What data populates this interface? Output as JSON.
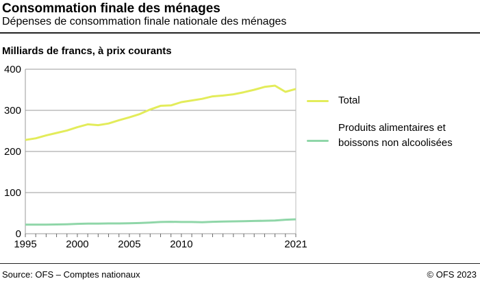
{
  "header": {
    "title": "Consommation finale des ménages",
    "subtitle": "Dépenses de consommation finale nationale des ménages"
  },
  "footer": {
    "source": "Source: OFS – Comptes nationaux",
    "copyright": "© OFS 2023"
  },
  "chart_data": {
    "type": "line",
    "title": "Consommation finale des ménages",
    "subtitle": "Dépenses de consommation finale nationale des ménages",
    "ylabel": "Milliards de francs, à prix courants",
    "xlabel": "",
    "ylim": [
      0,
      400
    ],
    "xlim": [
      1995,
      2021
    ],
    "yticks": [
      "0",
      "100",
      "200",
      "300",
      "400"
    ],
    "yticks_values": [
      0,
      100,
      200,
      300,
      400
    ],
    "xtick_labels": [
      "1995",
      "2000",
      "2005",
      "2010",
      "2021"
    ],
    "xtick_values": [
      1995,
      2000,
      2005,
      2010,
      2021
    ],
    "grid": true,
    "legend_placement": "right",
    "x": [
      1995,
      1996,
      1997,
      1998,
      1999,
      2000,
      2001,
      2002,
      2003,
      2004,
      2005,
      2006,
      2007,
      2008,
      2009,
      2010,
      2011,
      2012,
      2013,
      2014,
      2015,
      2016,
      2017,
      2018,
      2019,
      2020,
      2021
    ],
    "series": [
      {
        "name": "Total",
        "color": "#e3ec5a",
        "values": [
          228,
          232,
          239,
          245,
          251,
          259,
          266,
          264,
          268,
          276,
          283,
          291,
          302,
          311,
          312,
          320,
          324,
          328,
          334,
          336,
          339,
          344,
          350,
          357,
          360,
          345,
          352
        ]
      },
      {
        "name": "Produits alimentaires et boissons non alcoolisées",
        "color": "#8fd6a8",
        "values": [
          22,
          22,
          22,
          22.5,
          23,
          24,
          24.5,
          24.5,
          25,
          25,
          25.5,
          26,
          27,
          28.5,
          29,
          28.5,
          28.5,
          28,
          29,
          29.5,
          30,
          30.5,
          31,
          31.5,
          32,
          34,
          35
        ]
      }
    ]
  }
}
